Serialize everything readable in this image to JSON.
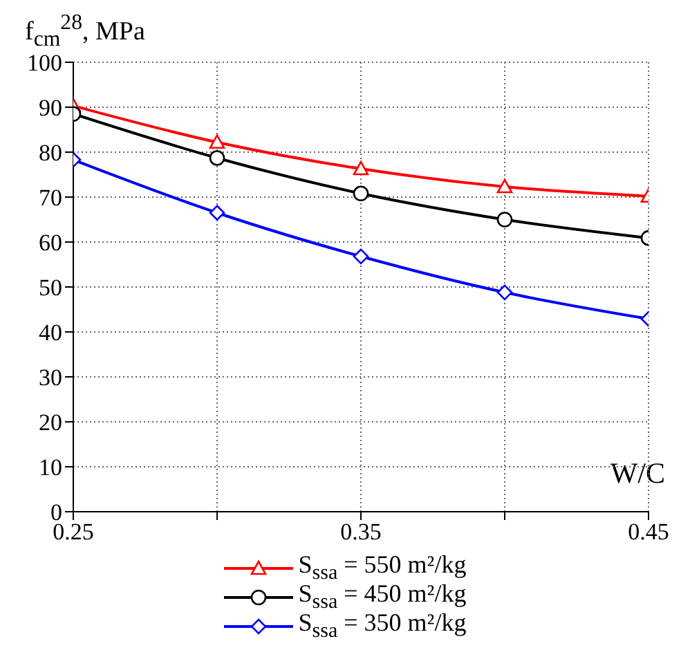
{
  "chart_data": {
    "type": "line",
    "ylabel": "f$_{cm}$$^{28}$, MPa",
    "xlabel": "W/C",
    "x": [
      0.25,
      0.3,
      0.35,
      0.4,
      0.45
    ],
    "xlim": [
      0.25,
      0.45
    ],
    "xticks": [
      0.25,
      {
        "value": 0.3,
        "label": null
      },
      0.35,
      {
        "value": 0.4,
        "label": null
      },
      0.45
    ],
    "ylim": [
      0,
      100
    ],
    "yticks": [
      0,
      10,
      20,
      30,
      40,
      50,
      60,
      70,
      80,
      90,
      100
    ],
    "grid": true,
    "legend": "bottom",
    "series": [
      {
        "name": "S$_{ssa}$ = 550 m²/kg",
        "color": "#ff0000",
        "marker": "triangle",
        "values": [
          90.3,
          82.2,
          76.3,
          72.3,
          70.2
        ]
      },
      {
        "name": "S$_{ssa}$ = 450 m²/kg",
        "color": "#000000",
        "marker": "circle",
        "values": [
          88.5,
          78.7,
          70.8,
          65,
          60.9
        ]
      },
      {
        "name": "S$_{ssa}$ = 350 m²/kg",
        "color": "#0000ff",
        "marker": "diamond",
        "values": [
          78.3,
          66.5,
          56.8,
          48.8,
          42.9
        ]
      }
    ]
  }
}
